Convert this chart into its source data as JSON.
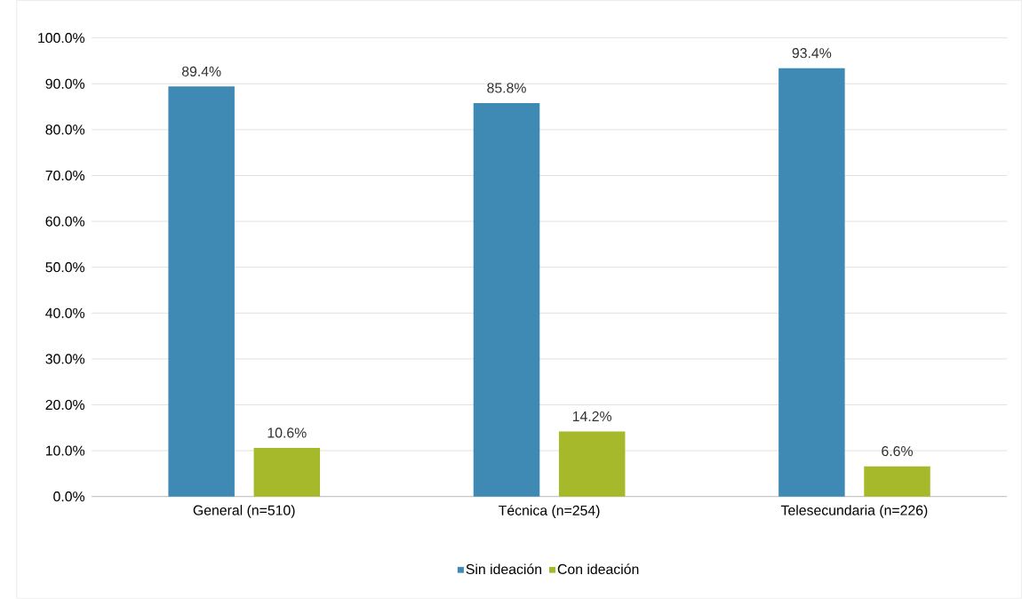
{
  "chart_data": {
    "type": "bar",
    "categories": [
      "General (n=510)",
      "Técnica (n=254)",
      "Telesecundaria (n=226)"
    ],
    "series": [
      {
        "name": "Sin ideación",
        "color": "#3e8ab4",
        "values": [
          89.4,
          85.8,
          93.4
        ],
        "value_labels": [
          "89.4%",
          "85.8%",
          "93.4%"
        ]
      },
      {
        "name": "Con ideación",
        "color": "#a6b92a",
        "values": [
          10.6,
          14.2,
          6.6
        ],
        "value_labels": [
          "10.6%",
          "14.2%",
          "6.6%"
        ]
      }
    ],
    "ylim": [
      0,
      100
    ],
    "yticks": [
      {
        "value": 0,
        "label": "0.0%"
      },
      {
        "value": 10,
        "label": "10.0%"
      },
      {
        "value": 20,
        "label": "20.0%"
      },
      {
        "value": 30,
        "label": "30.0%"
      },
      {
        "value": 40,
        "label": "40.0%"
      },
      {
        "value": 50,
        "label": "50.0%"
      },
      {
        "value": 60,
        "label": "60.0%"
      },
      {
        "value": 70,
        "label": "70.0%"
      },
      {
        "value": 80,
        "label": "80.0%"
      },
      {
        "value": 90,
        "label": "90.0%"
      },
      {
        "value": 100,
        "label": "100.0%"
      }
    ],
    "grid": "y",
    "legend": "bottom"
  }
}
